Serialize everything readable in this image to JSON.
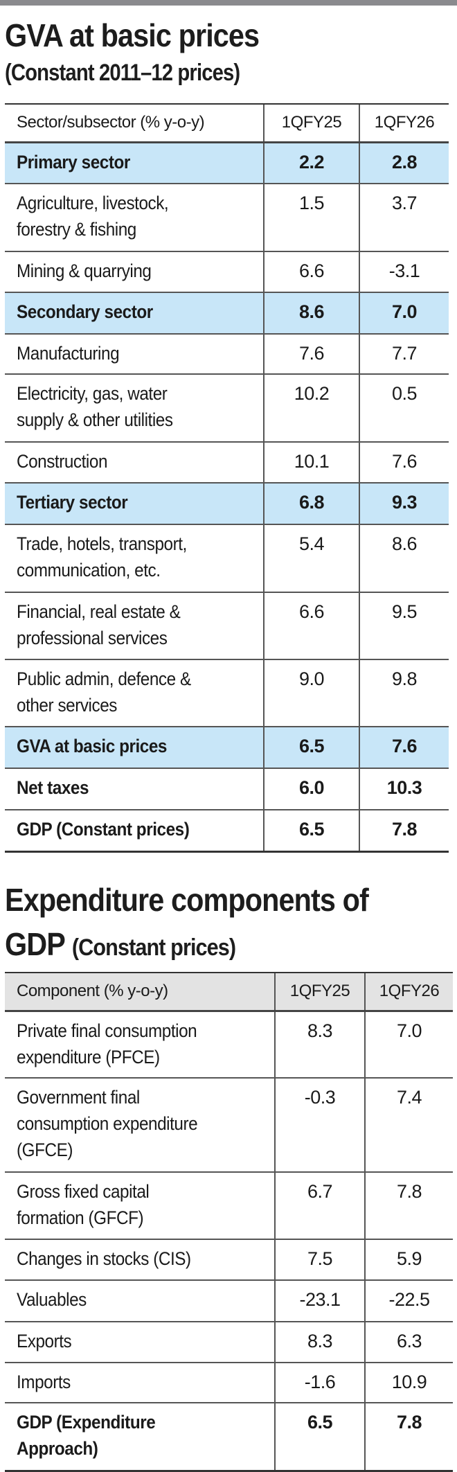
{
  "gva_table": {
    "title": "GVA at basic prices",
    "subtitle": "(Constant 2011–12 prices)",
    "columns": [
      "Sector/subsector (% y-o-y)",
      "1QFY25",
      "1QFY26"
    ],
    "highlight_color": "#c8e6f8",
    "rows": [
      {
        "label_lines": [
          "Primary sector"
        ],
        "q1fy25": "2.2",
        "q1fy26": "2.8",
        "style": "highlight"
      },
      {
        "label_lines": [
          "Agriculture, livestock,",
          "forestry & fishing"
        ],
        "q1fy25": "1.5",
        "q1fy26": "3.7",
        "style": "normal"
      },
      {
        "label_lines": [
          "Mining & quarrying"
        ],
        "q1fy25": "6.6",
        "q1fy26": "-3.1",
        "style": "normal"
      },
      {
        "label_lines": [
          "Secondary sector"
        ],
        "q1fy25": "8.6",
        "q1fy26": "7.0",
        "style": "highlight"
      },
      {
        "label_lines": [
          "Manufacturing"
        ],
        "q1fy25": "7.6",
        "q1fy26": "7.7",
        "style": "normal"
      },
      {
        "label_lines": [
          "Electricity, gas, water",
          "supply & other utilities"
        ],
        "q1fy25": "10.2",
        "q1fy26": "0.5",
        "style": "normal"
      },
      {
        "label_lines": [
          "Construction"
        ],
        "q1fy25": "10.1",
        "q1fy26": "7.6",
        "style": "normal"
      },
      {
        "label_lines": [
          "Tertiary sector"
        ],
        "q1fy25": "6.8",
        "q1fy26": "9.3",
        "style": "highlight"
      },
      {
        "label_lines": [
          "Trade, hotels, transport,",
          "communication, etc."
        ],
        "q1fy25": "5.4",
        "q1fy26": "8.6",
        "style": "normal"
      },
      {
        "label_lines": [
          "Financial, real estate &",
          "professional services"
        ],
        "q1fy25": "6.6",
        "q1fy26": "9.5",
        "style": "normal"
      },
      {
        "label_lines": [
          "Public admin, defence &",
          "other services"
        ],
        "q1fy25": "9.0",
        "q1fy26": "9.8",
        "style": "normal"
      },
      {
        "label_lines": [
          "GVA at basic prices"
        ],
        "q1fy25": "6.5",
        "q1fy26": "7.6",
        "style": "highlight"
      },
      {
        "label_lines": [
          "Net taxes"
        ],
        "q1fy25": "6.0",
        "q1fy26": "10.3",
        "style": "bold"
      },
      {
        "label_lines": [
          "GDP (Constant prices)"
        ],
        "q1fy25": "6.5",
        "q1fy26": "7.8",
        "style": "bold"
      }
    ]
  },
  "expenditure_table": {
    "title_line1": "Expenditure components of",
    "title_line2_main": "GDP",
    "title_line2_sub": "(Constant prices)",
    "columns": [
      "Component (% y-o-y)",
      "1QFY25",
      "1QFY26"
    ],
    "header_color": "#e3e3e3",
    "rows": [
      {
        "label_lines": [
          "Private final consumption",
          "expenditure (PFCE)"
        ],
        "q1fy25": "8.3",
        "q1fy26": "7.0",
        "style": "normal"
      },
      {
        "label_lines": [
          "Government final",
          "consumption expenditure",
          "(GFCE)"
        ],
        "q1fy25": "-0.3",
        "q1fy26": "7.4",
        "style": "normal"
      },
      {
        "label_lines": [
          "Gross fixed capital",
          "formation (GFCF)"
        ],
        "q1fy25": "6.7",
        "q1fy26": "7.8",
        "style": "normal"
      },
      {
        "label_lines": [
          "Changes in stocks (CIS)"
        ],
        "q1fy25": "7.5",
        "q1fy26": "5.9",
        "style": "normal"
      },
      {
        "label_lines": [
          "Valuables"
        ],
        "q1fy25": "-23.1",
        "q1fy26": "-22.5",
        "style": "normal"
      },
      {
        "label_lines": [
          "Exports"
        ],
        "q1fy25": "8.3",
        "q1fy26": "6.3",
        "style": "normal"
      },
      {
        "label_lines": [
          "Imports"
        ],
        "q1fy25": "-1.6",
        "q1fy26": "10.9",
        "style": "normal"
      },
      {
        "label_lines": [
          "GDP (Expenditure",
          "Approach)"
        ],
        "q1fy25": "6.5",
        "q1fy26": "7.8",
        "style": "bold"
      }
    ]
  }
}
